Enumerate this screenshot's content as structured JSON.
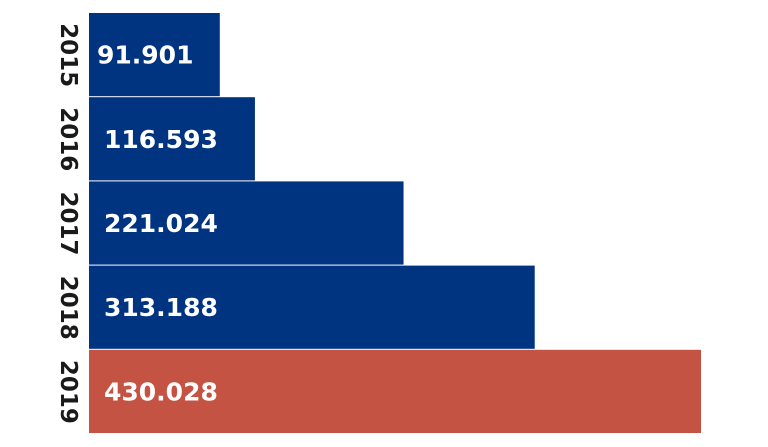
{
  "chart_data": {
    "type": "bar",
    "orientation": "horizontal",
    "categories": [
      "2015",
      "2016",
      "2017",
      "2018",
      "2019"
    ],
    "values": [
      91901,
      116593,
      221024,
      313188,
      430028
    ],
    "value_labels": [
      "91.901",
      "116.593",
      "221.024",
      "313.188",
      "430.028"
    ],
    "colors": [
      "#003380",
      "#003380",
      "#003380",
      "#003380",
      "#c55343"
    ],
    "xlim": [
      0,
      430028
    ],
    "grid": false,
    "legend": "none"
  }
}
